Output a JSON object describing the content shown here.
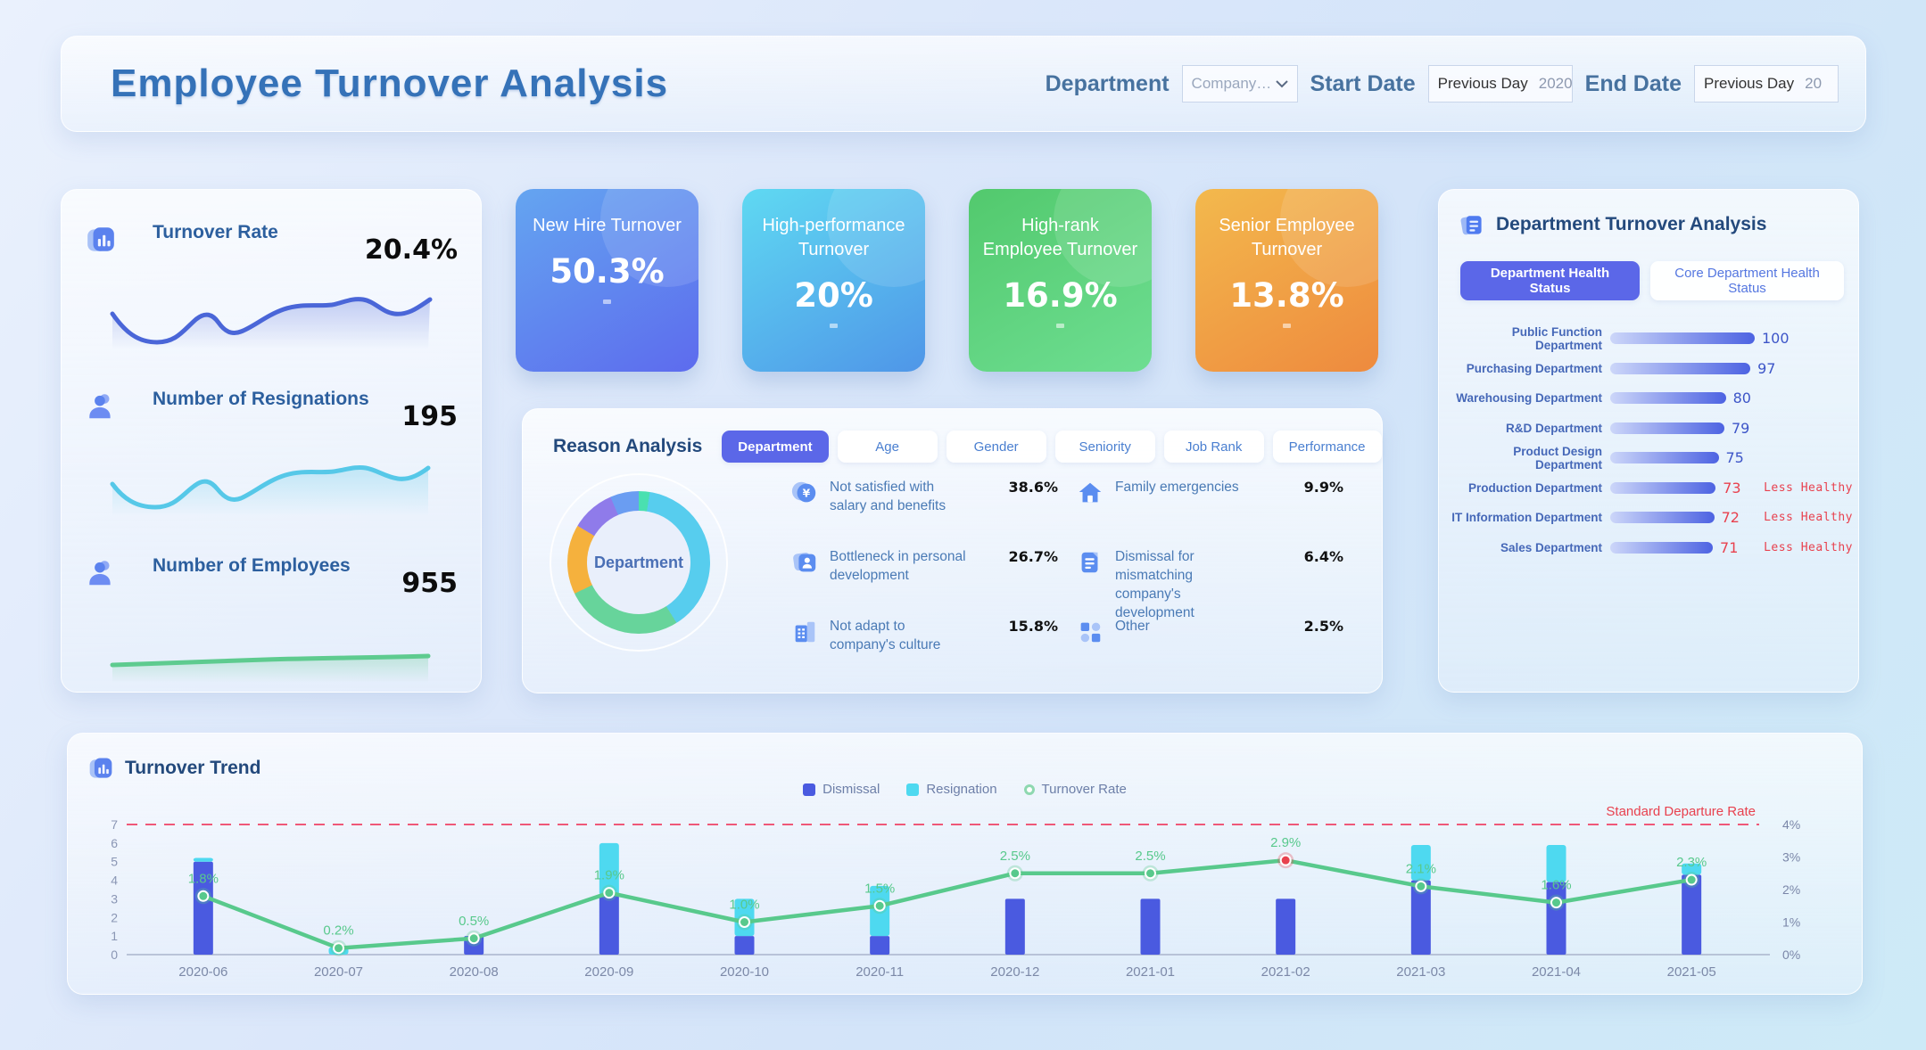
{
  "header": {
    "title": "Employee Turnover Analysis",
    "department_label": "Department",
    "department_value": "Company…",
    "start_date_label": "Start Date",
    "start_date_prefix": "Previous Day",
    "start_date_value": "2020",
    "end_date_label": "End Date",
    "end_date_prefix": "Previous Day",
    "end_date_value": "20"
  },
  "stats": {
    "items": [
      {
        "label": "Turnover Rate",
        "value": "20.4%",
        "icon": "chart-doc-icon",
        "line_color": "#4a66d8"
      },
      {
        "label": "Number of Resignations",
        "value": "195",
        "icon": "person-icon",
        "line_color": "#56c8e8"
      },
      {
        "label": "Number of Employees",
        "value": "955",
        "icon": "person-icon",
        "line_color": "#5ecb8f"
      }
    ]
  },
  "kpis": [
    {
      "label": "New Hire Turnover",
      "value": "50.3%",
      "color_from": "#64a5f0",
      "color_to": "#5d6bee"
    },
    {
      "label": "High-performance Turnover",
      "value": "20%",
      "color_from": "#5fd9f2",
      "color_to": "#4f96e8"
    },
    {
      "label": "High-rank Employee Turnover",
      "value": "16.9%",
      "color_from": "#52c96d",
      "color_to": "#6ede92"
    },
    {
      "label": "Senior Employee Turnover",
      "value": "13.8%",
      "color_from": "#f3b94d",
      "color_to": "#ee8a3e"
    }
  ],
  "reason": {
    "title": "Reason Analysis",
    "tabs": [
      {
        "label": "Department",
        "active": true
      },
      {
        "label": "Age",
        "active": false
      },
      {
        "label": "Gender",
        "active": false
      },
      {
        "label": "Seniority",
        "active": false
      },
      {
        "label": "Job Rank",
        "active": false
      },
      {
        "label": "Performance",
        "active": false
      }
    ],
    "items": [
      {
        "label": "Not satisfied with salary and benefits",
        "value": "38.6%",
        "icon": "coin-yen-icon"
      },
      {
        "label": "Family emergencies",
        "value": "9.9%",
        "icon": "house-icon"
      },
      {
        "label": "Bottleneck in personal development",
        "value": "26.7%",
        "icon": "id-card-icon"
      },
      {
        "label": "Dismissal for mismatching company's development",
        "value": "6.4%",
        "icon": "document-icon"
      },
      {
        "label": "Not adapt to company's culture",
        "value": "15.8%",
        "icon": "building-icon"
      },
      {
        "label": "Other",
        "value": "2.5%",
        "icon": "blocks-icon"
      }
    ]
  },
  "dept": {
    "title": "Department Turnover Analysis",
    "buttons": [
      {
        "label": "Department Health Status",
        "active": true
      },
      {
        "label": "Core Department Health Status",
        "active": false
      }
    ]
  },
  "trend": {
    "title": "Turnover Trend"
  },
  "chart_data": [
    {
      "name": "turnover-trend",
      "type": "bar",
      "categories": [
        "2020-06",
        "2020-07",
        "2020-08",
        "2020-09",
        "2020-10",
        "2020-11",
        "2020-12",
        "2021-01",
        "2021-02",
        "2021-03",
        "2021-04",
        "2021-05"
      ],
      "series": [
        {
          "name": "Dismissal",
          "type": "bar",
          "stacked": true,
          "color": "#4a5ae0",
          "values": [
            5,
            0,
            1,
            3.2,
            1,
            1,
            3,
            3,
            3,
            4,
            3.9,
            4.3
          ]
        },
        {
          "name": "Resignation",
          "type": "bar",
          "stacked": true,
          "color": "#4ed9f0",
          "values": [
            0.2,
            0.4,
            0,
            2.8,
            2,
            2.7,
            0,
            0,
            0,
            1.9,
            2,
            0.6
          ]
        },
        {
          "name": "Turnover Rate",
          "type": "line",
          "color": "#58c98c",
          "unit": "%",
          "values": [
            1.8,
            0.2,
            0.5,
            1.9,
            1.0,
            1.5,
            2.5,
            2.5,
            2.9,
            2.1,
            1.6,
            2.3
          ],
          "highlight_index": 8,
          "highlight_color": "#e8414e"
        }
      ],
      "left_axis": {
        "min": 0,
        "max": 7,
        "ticks": [
          0,
          1,
          2,
          3,
          4,
          5,
          6,
          7
        ]
      },
      "right_axis": {
        "labels": [
          "0%",
          "1%",
          "2%",
          "3%",
          "4%"
        ],
        "max": 4
      },
      "reference_line": {
        "label": "Standard Departure Rate",
        "left_value": 7,
        "right_value": "4%",
        "color": "#ef5878"
      },
      "legend": [
        "Dismissal",
        "Resignation",
        "Turnover Rate"
      ],
      "grid": false,
      "legend_position": "top-center"
    },
    {
      "name": "reason-donut",
      "type": "pie",
      "center_label": "Department",
      "segments": [
        {
          "label": "Other",
          "value": 2.5,
          "color": "#4ae0b0"
        },
        {
          "label": "Not satisfied with salary and benefits",
          "value": 38.6,
          "color": "#57cdee"
        },
        {
          "label": "Bottleneck in personal development",
          "value": 26.7,
          "color": "#67d49b"
        },
        {
          "label": "Not adapt to company's culture",
          "value": 15.8,
          "color": "#f5b13d"
        },
        {
          "label": "Family emergencies",
          "value": 9.9,
          "color": "#8f7bea"
        },
        {
          "label": "Dismissal for mismatching company's development",
          "value": 6.4,
          "color": "#6a9df2"
        }
      ]
    },
    {
      "name": "department-health",
      "type": "bar",
      "categories": [
        "Public Function Department",
        "Purchasing Department",
        "Warehousing Department",
        "R&D Department",
        "Product Design Department",
        "Production Department",
        "IT Information Department",
        "Sales Department"
      ],
      "values": [
        100,
        97,
        80,
        79,
        75,
        73,
        72,
        71
      ],
      "statuses": [
        "",
        "",
        "",
        "",
        "",
        "Less Healthy",
        "Less Healthy",
        "Less Healthy"
      ],
      "status_color": "#e8414e",
      "bar_color_from": "#ccd6f9",
      "bar_color_to": "#4d63e2",
      "xlim": [
        0,
        100
      ]
    }
  ]
}
